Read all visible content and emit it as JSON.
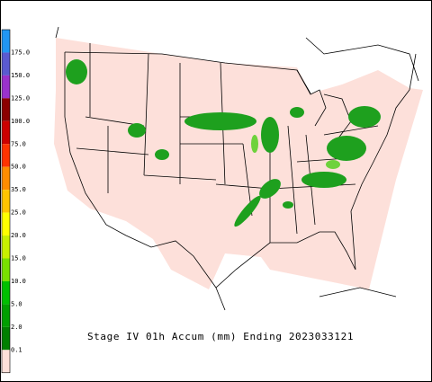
{
  "caption": "Stage IV 01h Accum (mm) Ending 2023033121",
  "legend": {
    "labels": [
      "175.0",
      "150.0",
      "125.0",
      "100.0",
      "75.0",
      "50.0",
      "35.0",
      "25.0",
      "20.0",
      "15.0",
      "10.0",
      "5.0",
      "2.0",
      "0.1"
    ]
  }
}
